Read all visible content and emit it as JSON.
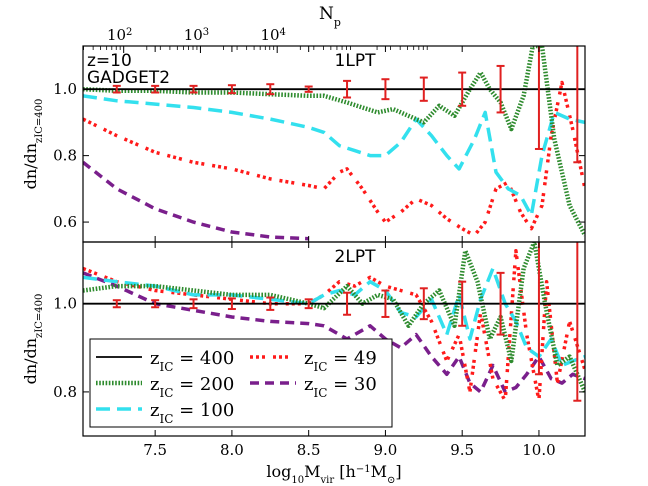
{
  "chart_data": {
    "type": "line",
    "top_axis": {
      "label": "N",
      "label_sub": "p",
      "ticks": [
        {
          "base": "10",
          "exp": "2",
          "value": 2.0
        },
        {
          "base": "10",
          "exp": "3",
          "value": 3.0
        },
        {
          "base": "10",
          "exp": "4",
          "value": 4.0
        }
      ],
      "log_np_at_xmin": 1.47,
      "log_np_per_xunit": 2.0
    },
    "xaxis": {
      "label_main": "log",
      "label_sub": "10",
      "label_rest": "M",
      "label_sub2": "vir",
      "label_units": "[h",
      "label_units_sup": "−1",
      "label_units_rest": "M",
      "label_units_sub": "⊙",
      "label_units_end": "]",
      "xlim": [
        7.03,
        10.3
      ],
      "ticks": [
        "7.5",
        "8.0",
        "8.5",
        "9.0",
        "9.5",
        "10.0"
      ],
      "tick_values": [
        7.5,
        8.0,
        8.5,
        9.0,
        9.5,
        10.0
      ]
    },
    "panels": [
      {
        "id": "top",
        "title": "1LPT",
        "corner_lines": [
          "z=10",
          "GADGET2"
        ],
        "ylabel_main": "dn/dn",
        "ylabel_sub": "zIC=400",
        "ylim": [
          0.54,
          1.13
        ],
        "yticks": [
          "0.6",
          "0.8",
          "1.0"
        ],
        "ytick_values": [
          0.6,
          0.8,
          1.0
        ],
        "reference": 1.0,
        "errorbars": {
          "x": [
            7.25,
            7.5,
            7.75,
            8.0,
            8.25,
            8.5,
            8.75,
            9.0,
            9.25,
            9.5,
            9.75,
            10.0,
            10.25
          ],
          "y": [
            1.0,
            1.0,
            1.0,
            1.0,
            1.0,
            1.0,
            1.0,
            1.0,
            1.0,
            1.0,
            1.0,
            1.0,
            1.0
          ],
          "err": [
            0.01,
            0.01,
            0.01,
            0.012,
            0.015,
            0.008,
            0.025,
            0.03,
            0.035,
            0.05,
            0.07,
            0.18,
            0.22
          ]
        },
        "series": [
          {
            "name": "zIC=400",
            "x": [
              7.03,
              10.3
            ],
            "y": [
              1.0,
              1.0
            ]
          },
          {
            "name": "zIC=200",
            "x": [
              7.03,
              7.25,
              7.5,
              7.75,
              8.0,
              8.25,
              8.5,
              8.6,
              8.75,
              8.85,
              8.95,
              9.05,
              9.15,
              9.25,
              9.35,
              9.45,
              9.55,
              9.62,
              9.68,
              9.75,
              9.82,
              9.9,
              9.96,
              10.02,
              10.1,
              10.2,
              10.3
            ],
            "y": [
              1.0,
              0.995,
              0.995,
              0.99,
              0.99,
              0.985,
              0.98,
              0.98,
              0.96,
              0.945,
              0.93,
              0.94,
              0.92,
              0.9,
              0.95,
              0.92,
              1.0,
              1.05,
              1.0,
              0.96,
              0.88,
              0.98,
              1.13,
              1.13,
              0.85,
              0.65,
              0.56
            ]
          },
          {
            "name": "zIC=100",
            "x": [
              7.03,
              7.25,
              7.5,
              7.75,
              8.0,
              8.25,
              8.5,
              8.6,
              8.7,
              8.8,
              8.9,
              9.0,
              9.1,
              9.2,
              9.3,
              9.4,
              9.48,
              9.58,
              9.65,
              9.72,
              9.8,
              9.88,
              9.95,
              10.02,
              10.1,
              10.2,
              10.3
            ],
            "y": [
              0.98,
              0.965,
              0.955,
              0.945,
              0.93,
              0.91,
              0.885,
              0.87,
              0.83,
              0.815,
              0.8,
              0.8,
              0.84,
              0.91,
              0.86,
              0.8,
              0.76,
              0.85,
              0.93,
              0.75,
              0.7,
              0.68,
              0.62,
              0.8,
              0.93,
              0.91,
              0.9
            ]
          },
          {
            "name": "zIC=49",
            "x": [
              7.03,
              7.25,
              7.5,
              7.75,
              8.0,
              8.25,
              8.5,
              8.6,
              8.7,
              8.75,
              8.85,
              8.95,
              9.0,
              9.1,
              9.2,
              9.3,
              9.4,
              9.5,
              9.58,
              9.65,
              9.72,
              9.8,
              9.88,
              9.95,
              10.02,
              10.08,
              10.15,
              10.22,
              10.3
            ],
            "y": [
              0.91,
              0.86,
              0.81,
              0.78,
              0.76,
              0.73,
              0.71,
              0.7,
              0.75,
              0.76,
              0.7,
              0.63,
              0.6,
              0.63,
              0.67,
              0.65,
              0.61,
              0.58,
              0.56,
              0.6,
              0.7,
              0.72,
              0.63,
              0.58,
              0.65,
              0.86,
              1.02,
              0.88,
              0.7
            ]
          },
          {
            "name": "zIC=30",
            "x": [
              7.03,
              7.25,
              7.5,
              7.75,
              8.0,
              8.25,
              8.5
            ],
            "y": [
              0.78,
              0.7,
              0.64,
              0.6,
              0.57,
              0.555,
              0.55
            ]
          }
        ]
      },
      {
        "id": "bottom",
        "title": "2LPT",
        "ylabel_main": "dn/dn",
        "ylabel_sub": "zIC=400",
        "ylim": [
          0.7,
          1.14
        ],
        "yticks": [
          "0.8",
          "1.0"
        ],
        "ytick_values": [
          0.8,
          1.0
        ],
        "reference": 1.0,
        "errorbars": {
          "x": [
            7.25,
            7.5,
            7.75,
            8.0,
            8.25,
            8.5,
            8.75,
            9.0,
            9.25,
            9.5,
            9.75,
            10.0,
            10.25
          ],
          "y": [
            1.0,
            1.0,
            1.0,
            1.0,
            1.0,
            1.0,
            1.0,
            1.0,
            1.0,
            1.0,
            1.0,
            1.0,
            1.0
          ],
          "err": [
            0.008,
            0.008,
            0.01,
            0.012,
            0.014,
            0.01,
            0.025,
            0.03,
            0.035,
            0.05,
            0.07,
            0.16,
            0.22
          ]
        },
        "series": [
          {
            "name": "zIC=400",
            "x": [
              7.03,
              10.3
            ],
            "y": [
              1.0,
              1.0
            ]
          },
          {
            "name": "zIC=200",
            "x": [
              7.03,
              7.25,
              7.5,
              7.75,
              8.0,
              8.25,
              8.5,
              8.6,
              8.75,
              8.85,
              8.95,
              9.05,
              9.15,
              9.25,
              9.35,
              9.45,
              9.52,
              9.6,
              9.68,
              9.75,
              9.82,
              9.9,
              9.97,
              10.04,
              10.12,
              10.2,
              10.3
            ],
            "y": [
              1.03,
              1.04,
              1.04,
              1.03,
              1.02,
              1.02,
              1.0,
              0.99,
              1.04,
              1.0,
              1.02,
              1.01,
              0.95,
              1.0,
              1.03,
              0.95,
              1.12,
              1.05,
              0.92,
              0.97,
              0.87,
              1.08,
              1.14,
              1.0,
              0.86,
              0.88,
              0.8
            ]
          },
          {
            "name": "zIC=100",
            "x": [
              7.03,
              7.25,
              7.5,
              7.75,
              8.0,
              8.25,
              8.5,
              8.6,
              8.7,
              8.8,
              8.9,
              9.0,
              9.1,
              9.2,
              9.3,
              9.4,
              9.48,
              9.55,
              9.62,
              9.7,
              9.78,
              9.85,
              9.92,
              10.0,
              10.08,
              10.15,
              10.22,
              10.3
            ],
            "y": [
              1.06,
              1.05,
              1.04,
              1.02,
              1.02,
              1.01,
              1.0,
              1.02,
              1.03,
              1.02,
              1.05,
              1.03,
              0.98,
              0.97,
              1.01,
              0.93,
              1.02,
              0.92,
              1.01,
              1.08,
              1.0,
              0.96,
              0.9,
              0.88,
              0.92,
              0.86,
              0.87,
              0.88
            ]
          },
          {
            "name": "zIC=49",
            "x": [
              7.03,
              7.25,
              7.5,
              7.75,
              8.0,
              8.25,
              8.5,
              8.6,
              8.7,
              8.8,
              8.9,
              9.0,
              9.1,
              9.2,
              9.3,
              9.4,
              9.48,
              9.55,
              9.62,
              9.7,
              9.78,
              9.85,
              9.92,
              10.0,
              10.05,
              10.12,
              10.2,
              10.3
            ],
            "y": [
              1.08,
              1.05,
              1.03,
              1.02,
              1.01,
              1.0,
              1.0,
              1.02,
              1.05,
              1.04,
              1.06,
              1.04,
              1.03,
              1.02,
              0.96,
              0.87,
              0.93,
              0.8,
              0.98,
              0.83,
              0.78,
              1.12,
              0.93,
              0.78,
              1.05,
              0.82,
              0.96,
              0.85
            ]
          },
          {
            "name": "zIC=30",
            "x": [
              7.03,
              7.25,
              7.5,
              7.75,
              8.0,
              8.25,
              8.5,
              8.6,
              8.75,
              8.9,
              9.0,
              9.1,
              9.2,
              9.3,
              9.4,
              9.48,
              9.55,
              9.62,
              9.7,
              9.78,
              9.85,
              9.92,
              10.0,
              10.08,
              10.15,
              10.22,
              10.3
            ],
            "y": [
              1.07,
              1.04,
              1.0,
              0.985,
              0.97,
              0.96,
              0.955,
              0.95,
              0.92,
              0.95,
              0.92,
              0.9,
              0.93,
              0.88,
              0.84,
              0.88,
              0.82,
              0.8,
              0.86,
              0.8,
              0.81,
              0.84,
              0.88,
              0.83,
              0.82,
              0.84,
              0.83
            ]
          }
        ]
      }
    ],
    "legend": {
      "location": "lower-left of bottom panel",
      "entries": [
        {
          "key": "zIC=400",
          "label_main": "z",
          "label_sub": "IC",
          "label_rest": " = 400"
        },
        {
          "key": "zIC=49",
          "label_main": "z",
          "label_sub": "IC",
          "label_rest": " = 49"
        },
        {
          "key": "zIC=200",
          "label_main": "z",
          "label_sub": "IC",
          "label_rest": " = 200"
        },
        {
          "key": "zIC=30",
          "label_main": "z",
          "label_sub": "IC",
          "label_rest": " = 30"
        },
        {
          "key": "zIC=100",
          "label_main": "z",
          "label_sub": "IC",
          "label_rest": " = 100"
        }
      ]
    },
    "colors": {
      "zIC=400": "#000000",
      "zIC=200": "#2e8b2e",
      "zIC=100": "#33e0ee",
      "zIC=49": "#ff1a1a",
      "zIC=30": "#7a1f8c",
      "errorbars": "#e02020"
    }
  }
}
